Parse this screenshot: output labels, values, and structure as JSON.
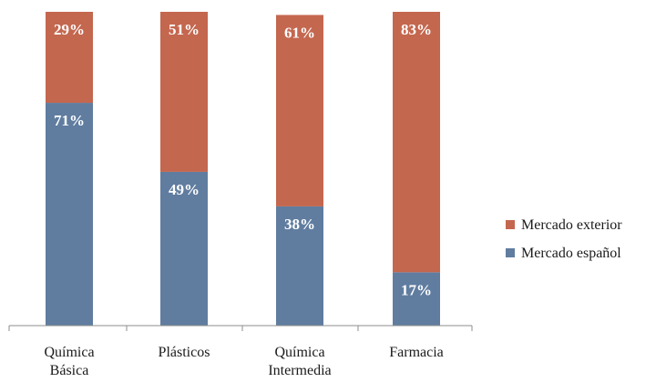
{
  "chart_data": {
    "type": "bar",
    "stacked": true,
    "percent": true,
    "categories": [
      [
        "Química",
        "Básica"
      ],
      [
        "Plásticos"
      ],
      [
        "Química",
        "Intermedia"
      ],
      [
        "Farmacia"
      ]
    ],
    "series": [
      {
        "name": "Mercado español",
        "color": "#607da0",
        "values": [
          71,
          49,
          38,
          17
        ],
        "labels": [
          "71%",
          "49%",
          "38%",
          "17%"
        ]
      },
      {
        "name": "Mercado exterior",
        "color": "#c4674f",
        "values": [
          29,
          51,
          61,
          83
        ],
        "labels": [
          "29%",
          "51%",
          "61%",
          "83%"
        ]
      }
    ],
    "ylim": [
      0,
      100
    ],
    "grid": false,
    "legend": {
      "position": "right",
      "order": [
        "Mercado exterior",
        "Mercado español"
      ]
    }
  }
}
